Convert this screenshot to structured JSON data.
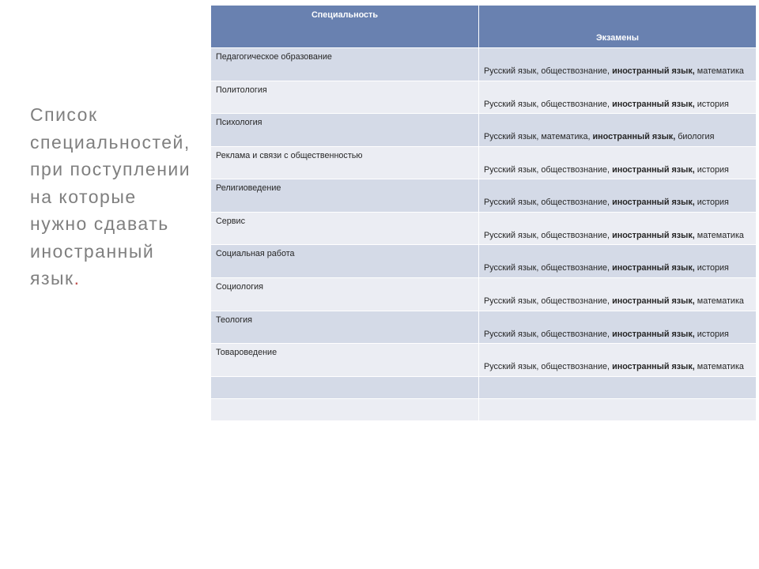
{
  "title": {
    "line1": "Список",
    "line2": "специальностей,",
    "line3": "при поступлении",
    "line4": "на которые",
    "line5": "нужно сдавать",
    "line6": "иностранный",
    "line7": "язык",
    "dot": "."
  },
  "table": {
    "header_major": "Специальность",
    "header_exam": "Экзамены",
    "rows": [
      {
        "major": "Педагогическое образование",
        "p1": "Русский язык, обществознание, ",
        "b": "иностранный язык,",
        "p2": " математика"
      },
      {
        "major": "Политология",
        "p1": "Русский язык, обществознание, ",
        "b": "иностранный язык,",
        "p2": " история"
      },
      {
        "major": "Психология",
        "p1": "Русский язык, математика, ",
        "b": "иностранный язык,",
        "p2": " биология"
      },
      {
        "major": "Реклама и связи с общественностью",
        "p1": "Русский язык, обществознание, ",
        "b": "иностранный язык,",
        "p2": " история"
      },
      {
        "major": "Религиоведение",
        "p1": "Русский язык, обществознание, ",
        "b": "иностранный язык,",
        "p2": " история"
      },
      {
        "major": "Сервис",
        "p1": "Русский язык, обществознание, ",
        "b": "иностранный язык,",
        "p2": " математика"
      },
      {
        "major": "Социальная работа",
        "p1": "Русский язык, обществознание, ",
        "b": "иностранный язык,",
        "p2": " история"
      },
      {
        "major": "Социология",
        "p1": "Русский язык, обществознание, ",
        "b": "иностранный язык,",
        "p2": " математика"
      },
      {
        "major": "Теология",
        "p1": "Русский язык, обществознание, ",
        "b": "иностранный язык,",
        "p2": " история"
      },
      {
        "major": "Товароведение",
        "p1": "Русский язык, обществознание, ",
        "b": "иностранный язык,",
        "p2": " математика"
      }
    ]
  },
  "colors": {
    "header_bg": "#6981b0",
    "row_odd": "#d4dae7",
    "row_even": "#ebedf3",
    "title_gray": "#7f7f7f",
    "accent": "#c0504d"
  }
}
